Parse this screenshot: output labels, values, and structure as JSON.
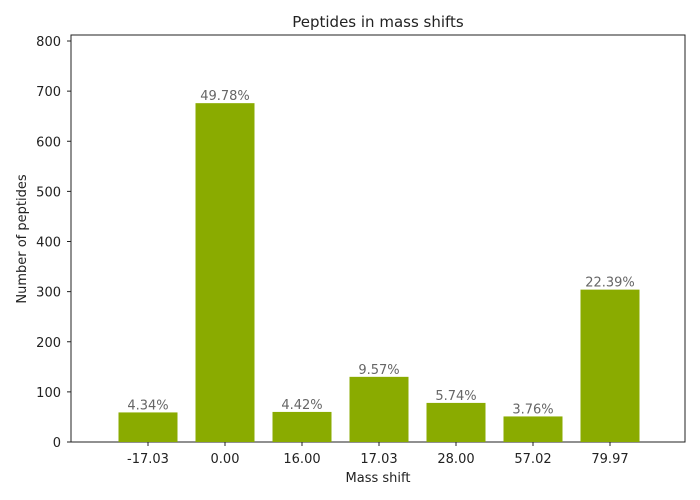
{
  "chart_data": {
    "type": "bar",
    "title": "Peptides in mass shifts",
    "xlabel": "Mass shift",
    "ylabel": "Number of peptides",
    "categories": [
      "-17.03",
      "0.00",
      "16.00",
      "17.03",
      "28.00",
      "57.02",
      "79.97"
    ],
    "values": [
      59,
      676,
      60,
      130,
      78,
      51,
      304
    ],
    "bar_labels": [
      "4.34%",
      "49.78%",
      "4.42%",
      "9.57%",
      "5.74%",
      "3.76%",
      "22.39%"
    ],
    "yticks": [
      "0",
      "100",
      "200",
      "300",
      "400",
      "500",
      "600",
      "700",
      "800"
    ],
    "ylim": [
      0,
      812
    ],
    "grid": false,
    "bar_color": "#8aab00",
    "label_color": "#666666"
  }
}
